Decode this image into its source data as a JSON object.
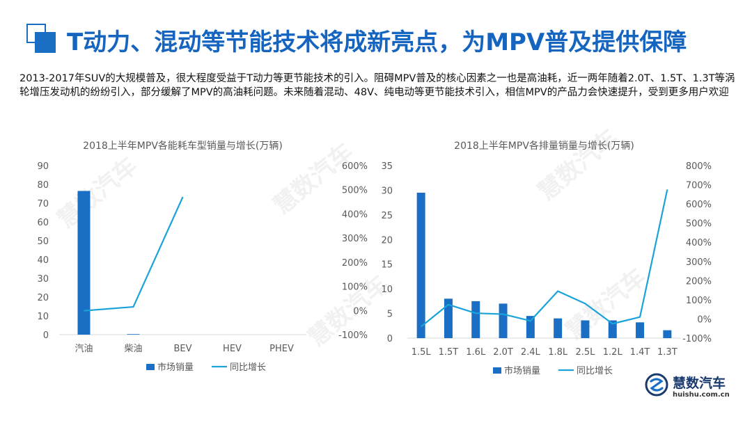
{
  "header": {
    "title": "T动力、混动等节能技术将成新亮点，为MPV普及提供保障"
  },
  "intro_text": "2013-2017年SUV的大规模普及，很大程度受益于T动力等更节能技术的引入。阻碍MPV普及的核心因素之一也是高油耗，近一两年随着2.0T、1.5T、1.3T等涡轮增压发动机的纷纷引入，部分缓解了MPV的高油耗问题。未来随着混动、48V、纯电动等更节能技术引入，相信MPV的产品力会快速提升，受到更多用户欢迎",
  "colors": {
    "bar": "#1a6fc4",
    "line": "#1aa3d9",
    "title": "#1565c0",
    "axis_text": "#595959"
  },
  "chart_data": [
    {
      "type": "bar",
      "title": "2018上半年MPV各能耗车型销量与增长(万辆)",
      "categories": [
        "汽油",
        "柴油",
        "BEV",
        "HEV",
        "PHEV"
      ],
      "series": [
        {
          "name": "市场销量",
          "type": "bar",
          "axis": "left",
          "values": [
            76.5,
            0.3,
            0,
            0,
            0
          ]
        },
        {
          "name": "同比增长",
          "type": "line",
          "axis": "right",
          "values": [
            -1,
            15,
            470,
            null,
            null
          ]
        }
      ],
      "ylim": [
        0,
        90
      ],
      "y_ticks": [
        "0",
        "10",
        "20",
        "30",
        "40",
        "50",
        "60",
        "70",
        "80",
        "90"
      ],
      "y2lim": [
        -100,
        600
      ],
      "y2_ticks": [
        "-100%",
        "0%",
        "100%",
        "200%",
        "300%",
        "400%",
        "500%",
        "600%"
      ],
      "legend": [
        "市场销量",
        "同比增长"
      ],
      "legend_position": "bottom",
      "grid": false
    },
    {
      "type": "bar",
      "title": "2018上半年MPV各排量销量与增长(万辆)",
      "categories": [
        "1.5L",
        "1.5T",
        "1.6L",
        "2.0T",
        "2.4L",
        "1.8L",
        "2.5L",
        "1.2L",
        "1.4T",
        "1.3T"
      ],
      "series": [
        {
          "name": "市场销量",
          "type": "bar",
          "axis": "left",
          "values": [
            29.5,
            8,
            7.5,
            7,
            4.5,
            4,
            3.6,
            3.6,
            3.2,
            1.6
          ]
        },
        {
          "name": "同比增长",
          "type": "line",
          "axis": "right",
          "values": [
            -40,
            75,
            30,
            25,
            -10,
            145,
            80,
            -25,
            10,
            675
          ]
        }
      ],
      "ylim": [
        0,
        35
      ],
      "y_ticks": [
        "0",
        "5",
        "10",
        "15",
        "20",
        "25",
        "30",
        "35"
      ],
      "y2lim": [
        -100,
        800
      ],
      "y2_ticks": [
        "-100%",
        "0%",
        "100%",
        "200%",
        "300%",
        "400%",
        "500%",
        "600%",
        "700%",
        "800%"
      ],
      "legend": [
        "市场销量",
        "同比增长"
      ],
      "legend_position": "bottom",
      "grid": false
    }
  ],
  "brand": {
    "name": "慧数汽车",
    "url": "huishu.com.cn",
    "watermark_main": "慧数汽车",
    "watermark_url": "Huishu.com.cn"
  }
}
